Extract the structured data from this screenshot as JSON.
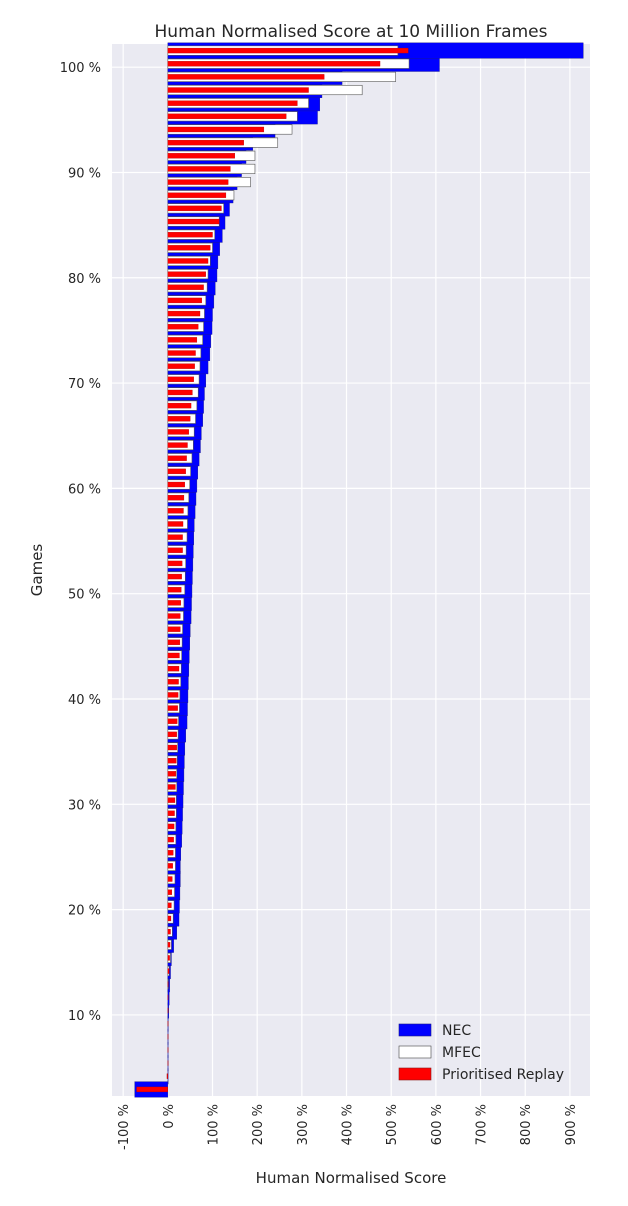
{
  "chart_data": {
    "type": "bar",
    "orientation": "horizontal",
    "title": "Human Normalised Score at 10 Million Frames",
    "xlabel": "Human Normalised Score",
    "ylabel": "Games",
    "xlim": [
      -125,
      945
    ],
    "ylim": [
      2.3,
      102.2
    ],
    "x_ticks": [
      -100,
      0,
      100,
      200,
      300,
      400,
      500,
      600,
      700,
      800,
      900
    ],
    "x_tick_labels": [
      "-100 %",
      "0 %",
      "100 %",
      "200 %",
      "300 %",
      "400 %",
      "500 %",
      "600 %",
      "700 %",
      "800 %",
      "900 %"
    ],
    "y_ticks": [
      10,
      20,
      30,
      40,
      50,
      60,
      70,
      80,
      90,
      100
    ],
    "y_tick_labels": [
      "10 %",
      "20 %",
      "30 %",
      "40 %",
      "50 %",
      "60 %",
      "70 %",
      "80 %",
      "90 %",
      "100 %"
    ],
    "grid": true,
    "legend_position": "bottom-right",
    "colors": {
      "NEC": "#0000ff",
      "MFEC": "#ffffff",
      "Prioritised Replay": "#ff0000",
      "background": "#eaeaf2",
      "grid": "#ffffff"
    },
    "series": [
      {
        "name": "NEC",
        "values": [
          -74,
          0,
          0,
          0,
          0,
          1,
          2,
          3,
          4,
          6,
          8,
          13,
          20,
          25,
          26,
          27,
          28,
          28,
          29,
          31,
          32,
          33,
          34,
          35,
          36,
          37,
          38,
          40,
          43,
          44,
          45,
          46,
          47,
          48,
          49,
          50,
          52,
          53,
          54,
          55,
          56,
          57,
          58,
          59,
          61,
          63,
          65,
          67,
          70,
          73,
          75,
          78,
          80,
          82,
          85,
          90,
          94,
          96,
          99,
          100,
          103,
          106,
          110,
          112,
          116,
          122,
          128,
          138,
          146,
          155,
          165,
          175,
          190,
          240,
          335,
          340,
          345,
          390,
          608,
          930
        ]
      },
      {
        "name": "MFEC",
        "values": [
          0,
          0,
          0,
          0,
          0,
          0,
          0,
          0,
          1,
          3,
          6,
          8,
          10,
          12,
          14,
          15,
          16,
          17,
          17,
          18,
          18,
          19,
          19,
          20,
          20,
          21,
          22,
          23,
          24,
          26,
          27,
          29,
          30,
          31,
          32,
          33,
          35,
          36,
          38,
          39,
          40,
          41,
          43,
          44,
          45,
          47,
          49,
          51,
          54,
          57,
          59,
          62,
          65,
          68,
          70,
          72,
          74,
          78,
          80,
          82,
          85,
          88,
          90,
          95,
          100,
          105,
          115,
          125,
          148,
          185,
          195,
          195,
          246,
          278,
          290,
          315,
          435,
          510,
          540,
          515
        ]
      },
      {
        "name": "Prioritised Replay",
        "values": [
          -70,
          -2,
          0,
          0,
          0,
          0,
          0,
          0,
          1,
          3,
          4,
          5,
          6,
          7,
          8,
          9,
          10,
          11,
          12,
          13,
          14,
          15,
          16,
          17,
          18,
          19,
          20,
          20,
          21,
          22,
          23,
          24,
          25,
          26,
          27,
          28,
          28,
          29,
          30,
          31,
          32,
          33,
          33,
          34,
          35,
          36,
          38,
          40,
          42,
          44,
          47,
          50,
          52,
          55,
          58,
          60,
          62,
          65,
          68,
          72,
          76,
          80,
          85,
          90,
          95,
          100,
          115,
          120,
          130,
          135,
          140,
          150,
          170,
          215,
          265,
          290,
          315,
          350,
          475,
          538
        ]
      }
    ]
  }
}
